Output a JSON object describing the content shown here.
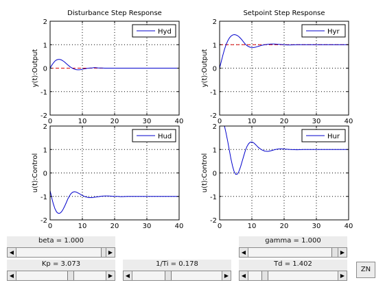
{
  "plots": [
    {
      "title": "Disturbance Step Response",
      "ylabel": "y(t):Output",
      "legend": "Hyd",
      "xticks": [
        "0",
        "10",
        "20",
        "30",
        "40"
      ],
      "yticks": [
        "2",
        "1",
        "0",
        "-1",
        "-2"
      ],
      "xlim": [
        0,
        40
      ],
      "ylim": [
        -2,
        2
      ],
      "reference": 0
    },
    {
      "title": "Setpoint Step Response",
      "ylabel": "y(t):Output",
      "legend": "Hyr",
      "xticks": [
        "0",
        "10",
        "20",
        "30",
        "40"
      ],
      "yticks": [
        "2",
        "1",
        "0",
        "-1",
        "-2"
      ],
      "xlim": [
        0,
        40
      ],
      "ylim": [
        -2,
        2
      ],
      "reference": 1
    },
    {
      "title": "",
      "ylabel": "u(t):Control",
      "legend": "Hud",
      "xticks": [
        "0",
        "10",
        "20",
        "30",
        "40"
      ],
      "yticks": [
        "2",
        "1",
        "0",
        "-1",
        "-2"
      ],
      "xlim": [
        0,
        40
      ],
      "ylim": [
        -2,
        2
      ]
    },
    {
      "title": "",
      "ylabel": "u(t):Control",
      "legend": "Hur",
      "xticks": [
        "0",
        "10",
        "20",
        "30",
        "40"
      ],
      "yticks": [
        "2",
        "1",
        "0",
        "-1",
        "-2"
      ],
      "xlim": [
        0,
        40
      ],
      "ylim": [
        -2,
        2
      ]
    }
  ],
  "chart_data": [
    {
      "type": "line",
      "title": "Disturbance Step Response",
      "ylabel": "y(t):Output",
      "xlim": [
        0,
        40
      ],
      "ylim": [
        -2,
        2
      ],
      "grid": true,
      "legend_position": "top-right",
      "series": [
        {
          "name": "Hyd",
          "color": "#0000cc",
          "x": [
            0,
            0.5,
            1,
            1.5,
            2,
            2.5,
            3,
            3.5,
            4,
            4.5,
            5,
            5.5,
            6,
            6.5,
            7,
            7.5,
            8,
            8.5,
            9,
            9.5,
            10,
            10.5,
            11,
            11.5,
            12,
            12.5,
            13,
            13.5,
            14,
            15,
            16,
            17,
            18,
            19,
            20,
            22,
            25,
            30,
            35,
            40
          ],
          "y": [
            0,
            0.12,
            0.22,
            0.3,
            0.35,
            0.37,
            0.37,
            0.35,
            0.31,
            0.26,
            0.2,
            0.14,
            0.08,
            0.03,
            -0.01,
            -0.04,
            -0.06,
            -0.07,
            -0.07,
            -0.06,
            -0.05,
            -0.03,
            -0.02,
            -0.01,
            0,
            0.01,
            0.01,
            0.02,
            0.02,
            0.01,
            0.01,
            0,
            0,
            0,
            0,
            0,
            0,
            0,
            0,
            0
          ]
        }
      ],
      "reference": {
        "value": 0,
        "color": "#dd0000",
        "style": "dashed"
      }
    },
    {
      "type": "line",
      "title": "Setpoint Step Response",
      "ylabel": "y(t):Output",
      "xlim": [
        0,
        40
      ],
      "ylim": [
        -2,
        2
      ],
      "grid": true,
      "legend_position": "top-right",
      "series": [
        {
          "name": "Hyr",
          "color": "#0000cc",
          "x": [
            0,
            0.5,
            1,
            1.5,
            2,
            2.5,
            3,
            3.5,
            4,
            4.5,
            5,
            5.5,
            6,
            6.5,
            7,
            7.5,
            8,
            8.5,
            9,
            9.5,
            10,
            10.5,
            11,
            11.5,
            12,
            13,
            14,
            15,
            16,
            17,
            18,
            19,
            20,
            21,
            22,
            24,
            27,
            30,
            35,
            40
          ],
          "y": [
            0,
            0.28,
            0.55,
            0.8,
            1.0,
            1.16,
            1.28,
            1.36,
            1.41,
            1.43,
            1.42,
            1.39,
            1.34,
            1.27,
            1.19,
            1.1,
            1.02,
            0.96,
            0.92,
            0.89,
            0.88,
            0.88,
            0.89,
            0.91,
            0.93,
            0.97,
            1.0,
            1.02,
            1.03,
            1.03,
            1.02,
            1.01,
            1.0,
            0.99,
            0.99,
            1.0,
            1.0,
            1.0,
            1.0,
            1.0
          ]
        }
      ],
      "reference": {
        "value": 1,
        "color": "#dd0000",
        "style": "dashed"
      }
    },
    {
      "type": "line",
      "ylabel": "u(t):Control",
      "xlim": [
        0,
        40
      ],
      "ylim": [
        -2,
        2
      ],
      "grid": true,
      "legend_position": "top-right",
      "series": [
        {
          "name": "Hud",
          "color": "#0000cc",
          "x": [
            0,
            0.5,
            1,
            1.5,
            2,
            2.5,
            3,
            3.5,
            4,
            4.5,
            5,
            5.5,
            6,
            6.5,
            7,
            7.5,
            8,
            8.5,
            9,
            9.5,
            10,
            11,
            12,
            13,
            14,
            15,
            16,
            17,
            18,
            19,
            20,
            21,
            22,
            24,
            27,
            30,
            35,
            40
          ],
          "y": [
            -0.75,
            -1.05,
            -1.32,
            -1.52,
            -1.66,
            -1.72,
            -1.72,
            -1.66,
            -1.56,
            -1.42,
            -1.27,
            -1.11,
            -0.98,
            -0.88,
            -0.82,
            -0.8,
            -0.81,
            -0.84,
            -0.88,
            -0.92,
            -0.96,
            -1.02,
            -1.05,
            -1.05,
            -1.03,
            -1.01,
            -0.99,
            -0.98,
            -0.98,
            -0.99,
            -1.0,
            -1.0,
            -1.01,
            -1.0,
            -1.0,
            -1.0,
            -1.0,
            -1.0
          ]
        }
      ]
    },
    {
      "type": "line",
      "ylabel": "u(t):Control",
      "xlim": [
        0,
        40
      ],
      "ylim": [
        -2,
        2
      ],
      "grid": true,
      "legend_position": "top-right",
      "series": [
        {
          "name": "Hur",
          "color": "#0000cc",
          "x": [
            1.5,
            2,
            2.5,
            3,
            3.5,
            4,
            4.5,
            5,
            5.5,
            6,
            6.5,
            7,
            7.5,
            8,
            8.5,
            9,
            9.5,
            10,
            10.5,
            11,
            11.5,
            12,
            13,
            14,
            15,
            16,
            17,
            18,
            19,
            20,
            22,
            24,
            26,
            28,
            30,
            35,
            40
          ],
          "y": [
            2.0,
            1.7,
            1.35,
            0.98,
            0.62,
            0.3,
            0.06,
            -0.06,
            -0.05,
            0.07,
            0.27,
            0.5,
            0.74,
            0.96,
            1.13,
            1.25,
            1.31,
            1.32,
            1.29,
            1.23,
            1.16,
            1.09,
            0.99,
            0.93,
            0.92,
            0.95,
            0.99,
            1.02,
            1.03,
            1.02,
            1.0,
            0.99,
            1.0,
            1.0,
            1.0,
            1.0,
            1.0
          ]
        }
      ]
    }
  ],
  "controls": {
    "beta": {
      "label": "beta = 1.000",
      "value": 1.0
    },
    "gamma": {
      "label": "gamma = 1.000",
      "value": 1.0
    },
    "kp": {
      "label": "Kp = 3.073",
      "value": 3.073
    },
    "ti": {
      "label": "1/Ti = 0.178",
      "value": 0.178
    },
    "td": {
      "label": "Td = 1.402",
      "value": 1.402
    },
    "zn_label": "ZN"
  },
  "colors": {
    "curve": "#0000cc",
    "reference": "#dd0000",
    "panel": "#ececec"
  }
}
